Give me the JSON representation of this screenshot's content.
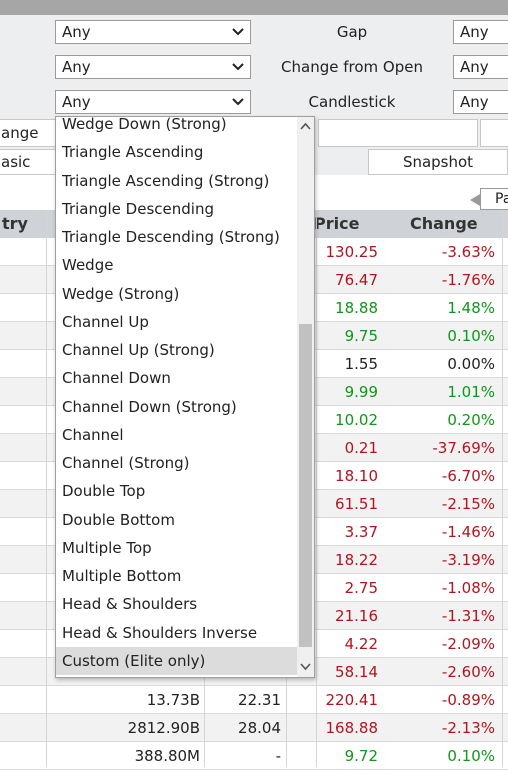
{
  "filters": {
    "row1": {
      "select_left": "Any",
      "label": "Gap",
      "select_right": "Any"
    },
    "row2": {
      "select_left": "Any",
      "label": "Change from Open",
      "select_right": "Any"
    },
    "row3": {
      "select_left": "Any",
      "label": "Candlestick",
      "select_right": "Any"
    }
  },
  "tabs": {
    "left_partial": "ange"
  },
  "views": {
    "basic_partial": "asic",
    "snapshot": "Snapshot"
  },
  "pager": {
    "label_partial": "Pa"
  },
  "table": {
    "headers": {
      "industry_partial": "try",
      "price": "Price",
      "change": "Change"
    },
    "rows": [
      {
        "price": "130.25",
        "change": "-3.63%",
        "dir": "neg"
      },
      {
        "price": "76.47",
        "change": "-1.76%",
        "dir": "neg"
      },
      {
        "price": "18.88",
        "change": "1.48%",
        "dir": "pos"
      },
      {
        "price": "9.75",
        "change": "0.10%",
        "dir": "pos"
      },
      {
        "price": "1.55",
        "change": "0.00%",
        "dir": "neu"
      },
      {
        "price": "9.99",
        "change": "1.01%",
        "dir": "pos"
      },
      {
        "price": "10.02",
        "change": "0.20%",
        "dir": "pos"
      },
      {
        "price": "0.21",
        "change": "-37.69%",
        "dir": "neg"
      },
      {
        "price": "18.10",
        "change": "-6.70%",
        "dir": "neg"
      },
      {
        "price": "61.51",
        "change": "-2.15%",
        "dir": "neg"
      },
      {
        "price": "3.37",
        "change": "-1.46%",
        "dir": "neg"
      },
      {
        "price": "18.22",
        "change": "-3.19%",
        "dir": "neg"
      },
      {
        "price": "2.75",
        "change": "-1.08%",
        "dir": "neg"
      },
      {
        "price": "21.16",
        "change": "-1.31%",
        "dir": "neg"
      },
      {
        "price": "4.22",
        "change": "-2.09%",
        "dir": "neg"
      },
      {
        "price": "58.14",
        "change": "-2.60%",
        "dir": "neg"
      },
      {
        "mcap": "13.73B",
        "pe": "22.31",
        "price": "220.41",
        "change": "-0.89%",
        "dir": "neg"
      },
      {
        "mcap": "2812.90B",
        "pe": "28.04",
        "price": "168.88",
        "change": "-2.13%",
        "dir": "neg"
      },
      {
        "mcap": "388.80M",
        "pe": "-",
        "price": "9.72",
        "change": "0.10%",
        "dir": "pos"
      }
    ]
  },
  "dropdown": {
    "options": [
      "Wedge Down (Strong)",
      "Triangle Ascending",
      "Triangle Ascending (Strong)",
      "Triangle Descending",
      "Triangle Descending (Strong)",
      "Wedge",
      "Wedge (Strong)",
      "Channel Up",
      "Channel Up (Strong)",
      "Channel Down",
      "Channel Down (Strong)",
      "Channel",
      "Channel (Strong)",
      "Double Top",
      "Double Bottom",
      "Multiple Top",
      "Multiple Bottom",
      "Head & Shoulders",
      "Head & Shoulders Inverse",
      "Custom (Elite only)"
    ],
    "selected": "Custom (Elite only)"
  },
  "colors": {
    "negative": "#b3141e",
    "positive": "#109618",
    "header_bg": "#cfd3d8"
  },
  "icons": {
    "select_arrow": "chevron-down-icon",
    "scroll_up": "chevron-up-icon",
    "scroll_down": "chevron-down-icon",
    "page_back": "arrow-left-icon"
  }
}
